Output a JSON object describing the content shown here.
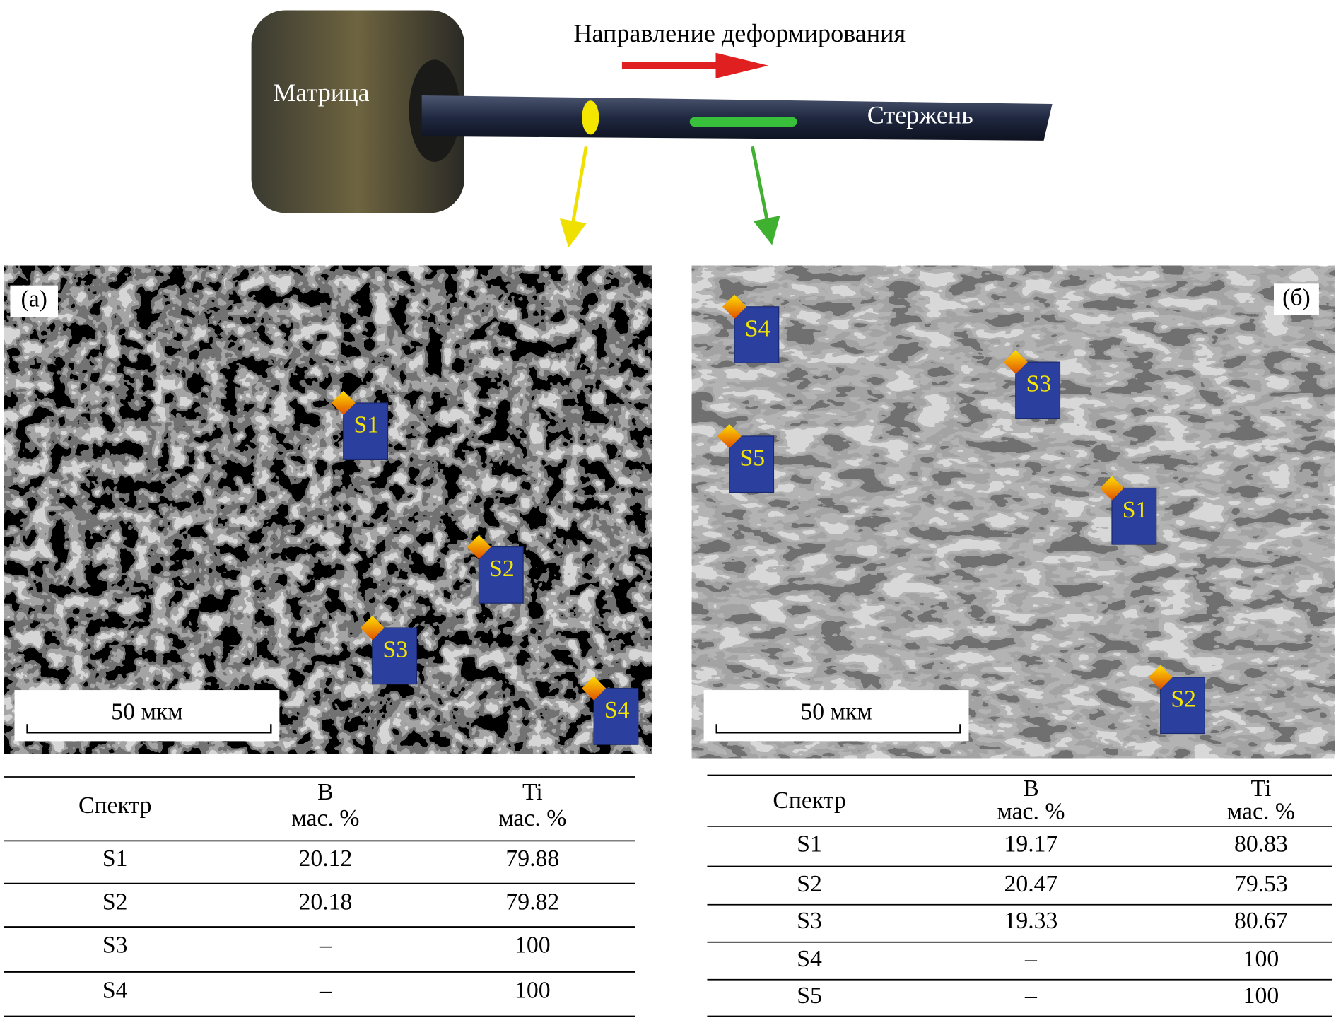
{
  "header": {
    "direction": "Направление деформирования",
    "matrix": "Матрица",
    "rod": "Стержень"
  },
  "panels": {
    "a": {
      "label": "(а)",
      "scale": "50 мкм",
      "markers": [
        "S1",
        "S2",
        "S3",
        "S4"
      ],
      "table": {
        "header": [
          "Спектр",
          [
            "B",
            "мас. %"
          ],
          [
            "Ti",
            "мас. %"
          ]
        ],
        "rows": [
          [
            "S1",
            20.12,
            79.88
          ],
          [
            "S2",
            20.18,
            79.82
          ],
          [
            "S3",
            "–",
            100
          ],
          [
            "S4",
            "–",
            100
          ]
        ]
      }
    },
    "b": {
      "label": "(б)",
      "scale": "50 мкм",
      "markers": [
        "S4",
        "S3",
        "S5",
        "S1",
        "S2"
      ],
      "table": {
        "header": [
          "Спектр",
          [
            "B",
            "мас. %"
          ],
          [
            "Ti",
            "мас. %"
          ]
        ],
        "rows": [
          [
            "S1",
            19.17,
            80.83
          ],
          [
            "S2",
            20.47,
            79.53
          ],
          [
            "S3",
            19.33,
            80.67
          ],
          [
            "S4",
            "–",
            100
          ],
          [
            "S5",
            "–",
            100
          ]
        ]
      }
    }
  }
}
